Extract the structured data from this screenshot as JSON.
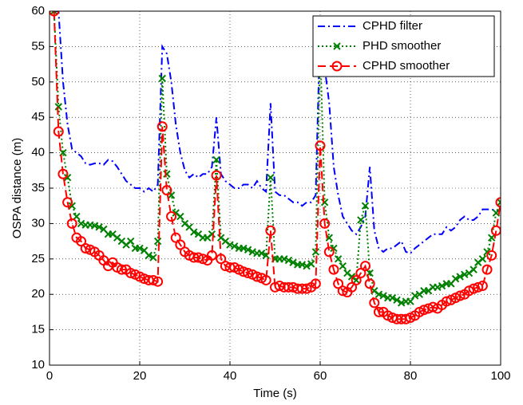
{
  "chart_data": {
    "type": "line",
    "xlabel": "Time (s)",
    "ylabel": "OSPA distance (m)",
    "xlim": [
      0,
      100
    ],
    "ylim": [
      10,
      60
    ],
    "xticks": [
      0,
      20,
      40,
      60,
      80,
      100
    ],
    "yticks": [
      10,
      15,
      20,
      25,
      30,
      35,
      40,
      45,
      50,
      55,
      60
    ],
    "grid": true,
    "legend": "upper right",
    "x": [
      1,
      2,
      3,
      4,
      5,
      6,
      7,
      8,
      9,
      10,
      11,
      12,
      13,
      14,
      15,
      16,
      17,
      18,
      19,
      20,
      21,
      22,
      23,
      24,
      25,
      26,
      27,
      28,
      29,
      30,
      31,
      32,
      33,
      34,
      35,
      36,
      37,
      38,
      39,
      40,
      41,
      42,
      43,
      44,
      45,
      46,
      47,
      48,
      49,
      50,
      51,
      52,
      53,
      54,
      55,
      56,
      57,
      58,
      59,
      60,
      61,
      62,
      63,
      64,
      65,
      66,
      67,
      68,
      69,
      70,
      71,
      72,
      73,
      74,
      75,
      76,
      77,
      78,
      79,
      80,
      81,
      82,
      83,
      84,
      85,
      86,
      87,
      88,
      89,
      90,
      91,
      92,
      93,
      94,
      95,
      96,
      97,
      98,
      99,
      100
    ],
    "series": [
      {
        "name": "CPHD filter",
        "color": "#0000ff",
        "style": "dashdot",
        "marker": "none",
        "values": [
          60,
          60,
          50,
          44,
          40.5,
          40,
          39.5,
          38.5,
          38.3,
          38.5,
          38.5,
          38.3,
          39,
          38.8,
          38,
          37,
          36,
          35.5,
          35,
          35,
          34.5,
          35,
          34.5,
          35.5,
          55,
          54,
          50,
          44,
          40,
          37.5,
          36.5,
          37,
          36.5,
          37,
          37,
          38,
          45,
          37,
          36,
          35.5,
          35,
          35,
          35.5,
          35.5,
          35,
          36,
          35,
          34.5,
          47,
          34.5,
          34,
          34,
          33.5,
          33,
          33,
          32.5,
          33,
          33,
          34,
          58,
          52,
          47,
          38,
          34,
          31,
          30,
          29,
          28.5,
          29.5,
          31,
          38,
          29,
          26.5,
          26,
          26.5,
          26.5,
          27,
          27.5,
          26,
          25.8,
          26.5,
          27,
          27.5,
          28,
          28.5,
          28.5,
          28.5,
          29.5,
          29,
          29.5,
          30.5,
          31,
          30.5,
          30.5,
          31,
          32,
          32,
          32,
          31.8,
          32
        ]
      },
      {
        "name": "PHD smoother",
        "color": "#008000",
        "style": "dotted",
        "marker": "x",
        "values": [
          60,
          46.5,
          40,
          36.5,
          32.5,
          31,
          30,
          29.8,
          29.8,
          29.7,
          29.5,
          29.2,
          28.5,
          28.5,
          28,
          27.5,
          27,
          27.5,
          26.5,
          26.5,
          26.2,
          25.5,
          25.2,
          27.5,
          50.5,
          37,
          34,
          31.5,
          31,
          30,
          29.5,
          28.8,
          28.5,
          28,
          28,
          28.5,
          39,
          28,
          27.5,
          27,
          26.8,
          26.5,
          26.5,
          26.3,
          26,
          25.8,
          25.8,
          25.5,
          36.5,
          25,
          25,
          25,
          24.8,
          24.5,
          24.2,
          24.2,
          24,
          24.3,
          26,
          55,
          33,
          28,
          26.5,
          25,
          24,
          23,
          22.5,
          22,
          30.5,
          32.5,
          23,
          20.5,
          20,
          19.8,
          19.5,
          19.5,
          19.2,
          18.8,
          19,
          19,
          19.8,
          20,
          20.5,
          20.5,
          21,
          21,
          21.2,
          21.5,
          21.5,
          22.2,
          22.5,
          22.8,
          23,
          23.5,
          24.5,
          25,
          26,
          28,
          31.5,
          33
        ]
      },
      {
        "name": "CPHD smoother",
        "color": "#ff0000",
        "style": "dashed",
        "marker": "o",
        "values": [
          60,
          43,
          37,
          33,
          30,
          28,
          27.5,
          26.5,
          26.3,
          26,
          25.5,
          24.8,
          24,
          24.5,
          23.8,
          23.5,
          23.5,
          23,
          22.8,
          22.5,
          22.2,
          22,
          22,
          21.8,
          43.7,
          34.7,
          31,
          28,
          27,
          26,
          25.5,
          25.2,
          25.2,
          25,
          24.8,
          25.5,
          36.8,
          25,
          24,
          23.8,
          23.8,
          23.5,
          23.2,
          23,
          22.8,
          22.5,
          22.3,
          22,
          29,
          21,
          21.2,
          21,
          21,
          21,
          20.8,
          20.8,
          20.8,
          21,
          21.5,
          41,
          30,
          26,
          23.5,
          21.5,
          20.5,
          20.3,
          21,
          22,
          23,
          24,
          21.5,
          18.8,
          17.5,
          17.5,
          17,
          16.7,
          16.5,
          16.5,
          16.5,
          16.7,
          17,
          17.5,
          17.8,
          18,
          18.2,
          18,
          18.5,
          19,
          19.2,
          19.5,
          19.8,
          20,
          20.5,
          20.8,
          21,
          21.2,
          23.5,
          25.5,
          29,
          33
        ]
      }
    ]
  }
}
